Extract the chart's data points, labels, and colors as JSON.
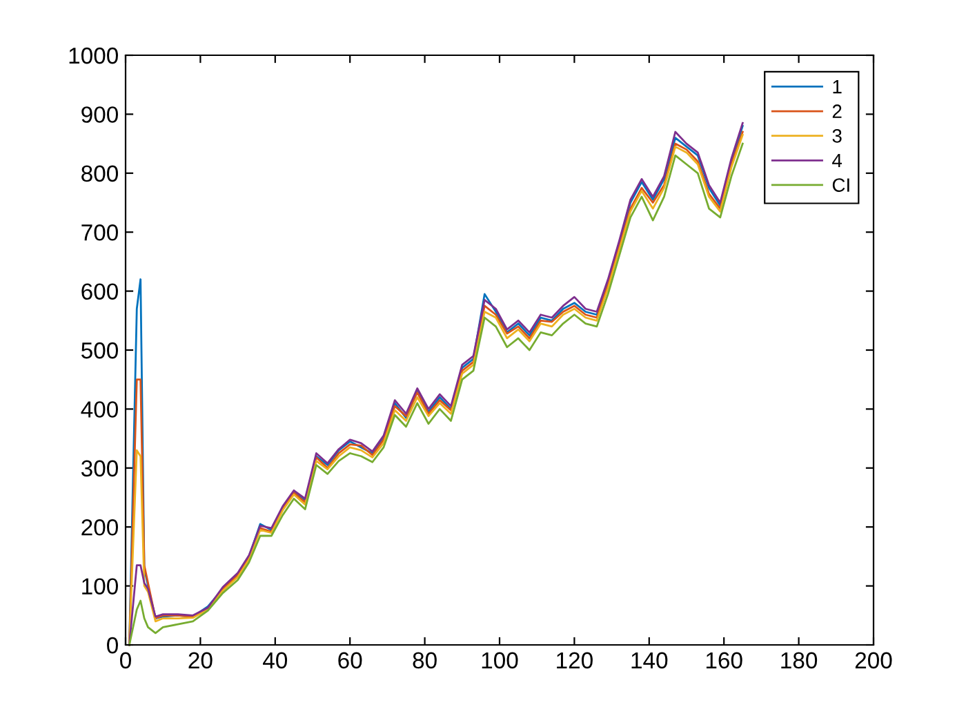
{
  "chart_data": {
    "type": "line",
    "xlim": [
      0,
      200
    ],
    "ylim": [
      0,
      1000
    ],
    "xticks": [
      0,
      20,
      40,
      60,
      80,
      100,
      120,
      140,
      160,
      180,
      200
    ],
    "yticks": [
      0,
      100,
      200,
      300,
      400,
      500,
      600,
      700,
      800,
      900,
      1000
    ],
    "grid": false,
    "legend": "top right",
    "marker": "none",
    "line_style": "solid",
    "x": [
      1,
      3,
      4,
      5,
      6,
      8,
      10,
      14,
      18,
      22,
      26,
      30,
      33,
      36,
      39,
      42,
      45,
      48,
      51,
      54,
      57,
      60,
      63,
      66,
      69,
      72,
      75,
      78,
      81,
      84,
      87,
      90,
      93,
      96,
      99,
      102,
      105,
      108,
      111,
      114,
      117,
      120,
      123,
      126,
      129,
      132,
      135,
      138,
      141,
      144,
      147,
      150,
      153,
      156,
      159,
      162,
      165
    ],
    "series": [
      {
        "name": "1",
        "color": "#0072bd",
        "values": [
          0,
          570,
          620,
          130,
          100,
          45,
          48,
          50,
          48,
          65,
          95,
          120,
          150,
          205,
          195,
          230,
          260,
          245,
          320,
          305,
          330,
          345,
          335,
          325,
          350,
          410,
          385,
          430,
          395,
          420,
          400,
          470,
          485,
          595,
          565,
          530,
          545,
          525,
          555,
          550,
          570,
          580,
          565,
          560,
          615,
          680,
          750,
          785,
          755,
          790,
          860,
          845,
          830,
          775,
          745,
          820,
          880
        ]
      },
      {
        "name": "2",
        "color": "#d95319",
        "values": [
          0,
          450,
          450,
          135,
          105,
          45,
          50,
          50,
          48,
          62,
          95,
          118,
          148,
          198,
          192,
          232,
          258,
          242,
          318,
          300,
          325,
          340,
          338,
          322,
          348,
          405,
          388,
          428,
          392,
          415,
          398,
          465,
          480,
          575,
          560,
          528,
          540,
          520,
          550,
          548,
          565,
          575,
          560,
          555,
          610,
          675,
          740,
          775,
          750,
          780,
          850,
          840,
          820,
          765,
          740,
          815,
          870
        ]
      },
      {
        "name": "3",
        "color": "#edb120",
        "values": [
          0,
          330,
          320,
          100,
          90,
          40,
          45,
          45,
          46,
          60,
          92,
          115,
          145,
          195,
          190,
          228,
          255,
          238,
          312,
          298,
          320,
          335,
          330,
          318,
          342,
          398,
          380,
          420,
          388,
          410,
          392,
          460,
          475,
          565,
          555,
          520,
          535,
          515,
          545,
          540,
          560,
          570,
          555,
          550,
          605,
          670,
          735,
          770,
          740,
          775,
          845,
          835,
          815,
          760,
          735,
          810,
          865
        ]
      },
      {
        "name": "4",
        "color": "#7e2f8e",
        "values": [
          0,
          135,
          135,
          105,
          95,
          48,
          52,
          52,
          50,
          63,
          98,
          122,
          152,
          202,
          198,
          235,
          262,
          248,
          325,
          308,
          332,
          348,
          342,
          328,
          355,
          415,
          392,
          435,
          400,
          425,
          405,
          475,
          490,
          585,
          570,
          535,
          550,
          530,
          560,
          555,
          575,
          590,
          570,
          565,
          620,
          685,
          755,
          790,
          760,
          795,
          870,
          850,
          835,
          780,
          750,
          825,
          885
        ]
      },
      {
        "name": "CI",
        "color": "#77ac30",
        "values": [
          0,
          60,
          75,
          45,
          30,
          20,
          30,
          35,
          40,
          58,
          88,
          110,
          140,
          185,
          185,
          220,
          248,
          230,
          305,
          290,
          312,
          325,
          320,
          310,
          335,
          390,
          370,
          410,
          375,
          400,
          380,
          450,
          465,
          555,
          540,
          505,
          520,
          500,
          530,
          525,
          545,
          560,
          545,
          540,
          595,
          660,
          725,
          760,
          720,
          760,
          830,
          815,
          800,
          740,
          725,
          795,
          850
        ]
      }
    ]
  }
}
